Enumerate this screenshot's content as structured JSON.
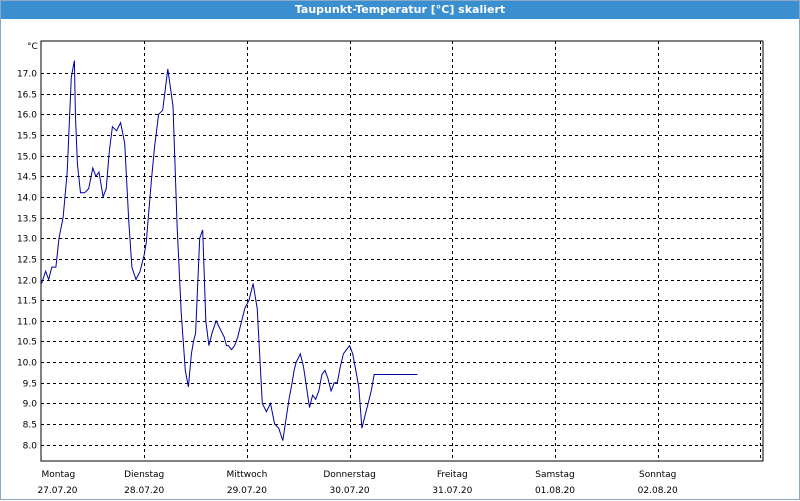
{
  "window_title": "Taupunkt-Temperatur [°C] skaliert",
  "chart_data": {
    "type": "line",
    "title": "Taupunkt-Temperatur [°C] skaliert",
    "ylabel": "°C",
    "ylim": [
      7.7,
      17.5
    ],
    "grid": true,
    "y_ticks": [
      "17.0",
      "16.5",
      "16.0",
      "15.5",
      "15.0",
      "14.5",
      "14.0",
      "13.5",
      "13.0",
      "12.5",
      "12.0",
      "11.5",
      "11.0",
      "10.5",
      "10.0",
      "9.5",
      "9.0",
      "8.5",
      "8.0"
    ],
    "x_ticks": [
      {
        "day": "Montag",
        "date": "27.07.20"
      },
      {
        "day": "Dienstag",
        "date": "28.07.20"
      },
      {
        "day": "Mittwoch",
        "date": "29.07.20"
      },
      {
        "day": "Donnerstag",
        "date": "30.07.20"
      },
      {
        "day": "Freitag",
        "date": "31.07.20"
      },
      {
        "day": "Samstag",
        "date": "01.08.20"
      },
      {
        "day": "Sonntag",
        "date": "02.08.20"
      }
    ],
    "xlim_days": [
      0,
      7
    ],
    "series": [
      {
        "color": "#0000a0",
        "x": [
          0,
          0.04,
          0.07,
          0.1,
          0.14,
          0.17,
          0.21,
          0.25,
          0.29,
          0.32,
          0.33,
          0.35,
          0.38,
          0.42,
          0.46,
          0.5,
          0.53,
          0.56,
          0.6,
          0.63,
          0.66,
          0.69,
          0.73,
          0.77,
          0.81,
          0.85,
          0.88,
          0.92,
          0.96,
          1.0,
          1.02,
          1.04,
          1.07,
          1.1,
          1.14,
          1.18,
          1.23,
          1.28,
          1.32,
          1.36,
          1.4,
          1.43,
          1.46,
          1.48,
          1.5,
          1.54,
          1.57,
          1.6,
          1.63,
          1.66,
          1.7,
          1.74,
          1.78,
          1.8,
          1.82,
          1.85,
          1.88,
          1.91,
          1.94,
          1.98,
          2.02,
          2.06,
          2.1,
          2.15,
          2.19,
          2.23,
          2.27,
          2.31,
          2.35,
          2.38,
          2.41,
          2.44,
          2.46,
          2.48,
          2.5,
          2.52,
          2.55,
          2.58,
          2.61,
          2.64,
          2.67,
          2.7,
          2.73,
          2.76,
          2.79,
          2.82,
          2.85,
          2.88,
          2.91,
          2.94,
          2.97,
          3.0,
          3.03,
          3.06,
          3.09,
          3.12,
          3.15,
          3.18,
          3.21,
          3.24,
          3.27,
          3.3,
          3.33,
          3.36,
          3.39,
          3.42,
          3.46,
          3.5,
          3.54,
          3.57,
          3.6,
          3.63,
          3.66
        ],
        "values": [
          11.9,
          12.2,
          12.0,
          12.3,
          12.3,
          13.0,
          13.5,
          14.6,
          16.9,
          17.3,
          16.0,
          14.8,
          14.1,
          14.1,
          14.2,
          14.7,
          14.5,
          14.6,
          14.0,
          14.2,
          15.1,
          15.7,
          15.6,
          15.8,
          15.3,
          13.4,
          12.3,
          12.0,
          12.2,
          12.6,
          12.9,
          13.5,
          14.4,
          15.2,
          16.0,
          16.1,
          17.1,
          16.2,
          13.3,
          11.2,
          9.8,
          9.4,
          10.2,
          10.5,
          10.7,
          13.0,
          13.2,
          11.0,
          10.4,
          10.7,
          11.0,
          10.8,
          10.6,
          10.4,
          10.4,
          10.3,
          10.4,
          10.6,
          10.9,
          11.3,
          11.5,
          11.9,
          11.3,
          9.0,
          8.8,
          9.0,
          8.5,
          8.4,
          8.1,
          8.6,
          9.1,
          9.5,
          9.8,
          10.0,
          10.1,
          10.2,
          9.9,
          9.4,
          8.9,
          9.2,
          9.1,
          9.3,
          9.7,
          9.8,
          9.6,
          9.3,
          9.5,
          9.5,
          9.9,
          10.2,
          10.3,
          10.4,
          10.2,
          9.8,
          9.4,
          8.4,
          8.7,
          9.0,
          9.3,
          9.7,
          9.7,
          9.7,
          9.7,
          9.7,
          9.7,
          9.7,
          9.7,
          9.7,
          9.7,
          9.7,
          9.7,
          9.7,
          9.7
        ]
      }
    ]
  }
}
